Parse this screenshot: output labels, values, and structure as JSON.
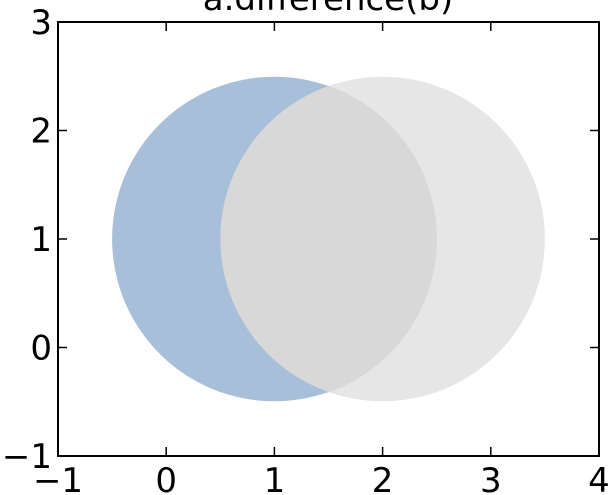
{
  "chart_data": {
    "type": "shape-plot",
    "title": "a.difference(b)",
    "xlim": [
      -1,
      4
    ],
    "ylim": [
      -1,
      3
    ],
    "xticks": [
      "−1",
      "0",
      "1",
      "2",
      "3",
      "4"
    ],
    "yticks": [
      "−1",
      "0",
      "1",
      "2",
      "3"
    ],
    "xtick_values": [
      -1,
      0,
      1,
      2,
      3,
      4
    ],
    "ytick_values": [
      -1,
      0,
      1,
      2,
      3
    ],
    "shapes": [
      {
        "role": "a",
        "type": "circle",
        "center": [
          1,
          1
        ],
        "radius": 1.5,
        "color": "#a7bfd8"
      },
      {
        "role": "b",
        "type": "circle",
        "center": [
          2,
          1
        ],
        "radius": 1.5,
        "color": "#e6e6e6"
      }
    ],
    "overlap_color": "#d8d8d8",
    "difference_color": "#a7bfd8"
  }
}
